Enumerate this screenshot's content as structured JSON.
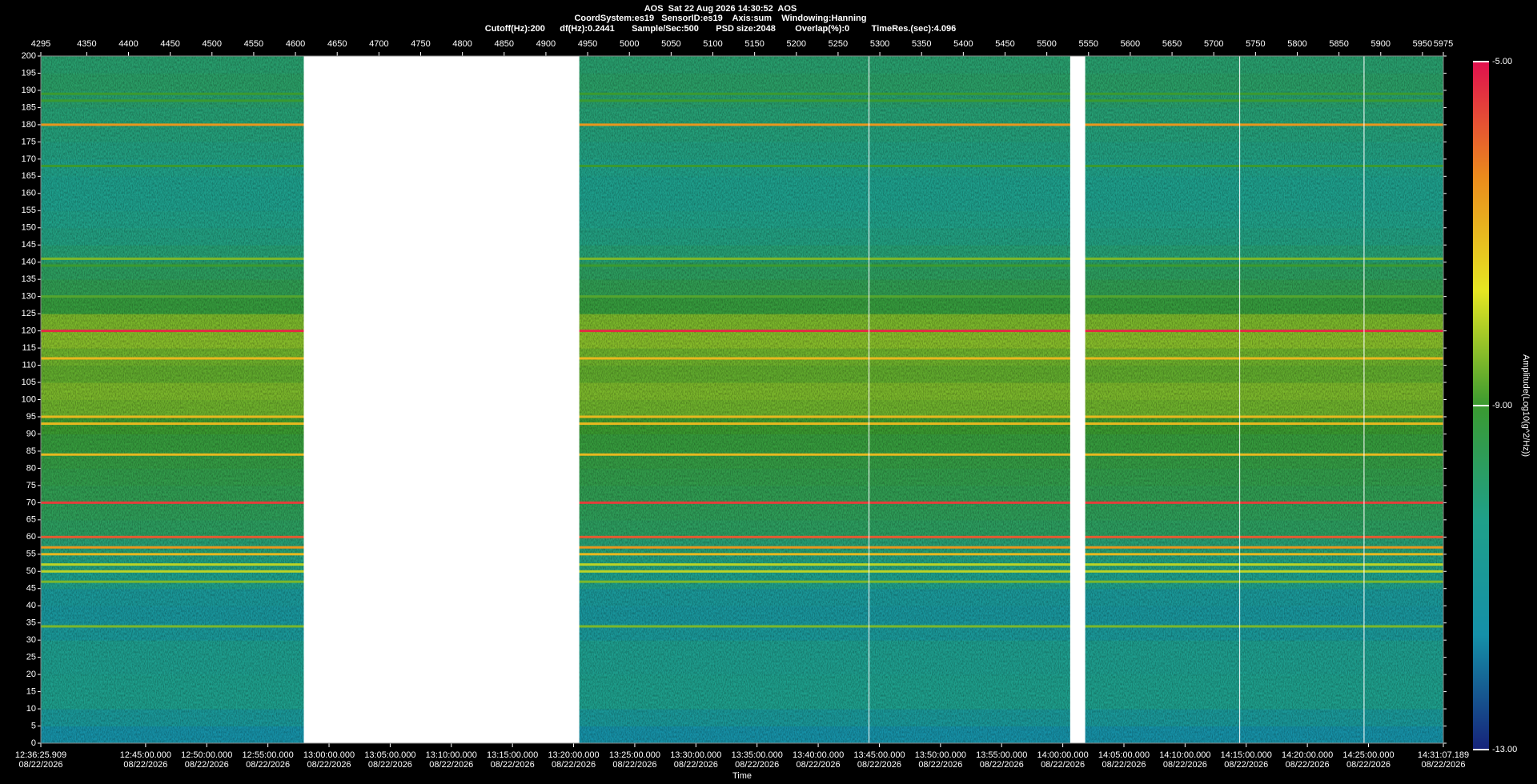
{
  "chart_data": {
    "type": "spectrogram",
    "header": [
      "AOS  Sat 22 Aug 2026 14:30:52  AOS",
      "CoordSystem:es19   SensorID:es19    Axis:sum    Windowing:Hanning",
      "Cutoff(Hz):200      df(Hz):0.2441       Sample/Sec:500       PSD size:2048        Overlap(%):0         TimeRes.(sec):4.096"
    ],
    "x_label": "Time",
    "colorbar_label": "Amplitude(Log10(g^2/Hz))",
    "xlim": [
      4295,
      5975
    ],
    "xticks": [
      4295,
      4350,
      4400,
      4450,
      4500,
      4550,
      4600,
      4650,
      4700,
      4750,
      4800,
      4850,
      4900,
      4950,
      5000,
      5050,
      5100,
      5150,
      5200,
      5250,
      5300,
      5350,
      5400,
      5450,
      5500,
      5550,
      5600,
      5650,
      5700,
      5750,
      5800,
      5850,
      5900,
      5950,
      5975
    ],
    "ylim": [
      0,
      200
    ],
    "yticks": [
      0,
      5,
      10,
      15,
      20,
      25,
      30,
      35,
      40,
      45,
      50,
      55,
      60,
      65,
      70,
      75,
      80,
      85,
      90,
      95,
      100,
      105,
      110,
      115,
      120,
      125,
      130,
      135,
      140,
      145,
      150,
      155,
      160,
      165,
      170,
      175,
      180,
      185,
      190,
      195,
      200
    ],
    "time_axis": {
      "lim": [
        45385.909,
        52267.189
      ],
      "ticks": [
        {
          "value": 45385.909,
          "label": "12:36:25.909",
          "date": "08/22/2026"
        },
        {
          "value": 45900,
          "label": "12:45:00.000",
          "date": "08/22/2026"
        },
        {
          "value": 46200,
          "label": "12:50:00.000",
          "date": "08/22/2026"
        },
        {
          "value": 46500,
          "label": "12:55:00.000",
          "date": "08/22/2026"
        },
        {
          "value": 46800,
          "label": "13:00:00.000",
          "date": "08/22/2026"
        },
        {
          "value": 47100,
          "label": "13:05:00.000",
          "date": "08/22/2026"
        },
        {
          "value": 47400,
          "label": "13:10:00.000",
          "date": "08/22/2026"
        },
        {
          "value": 47700,
          "label": "13:15:00.000",
          "date": "08/22/2026"
        },
        {
          "value": 48000,
          "label": "13:20:00.000",
          "date": "08/22/2026"
        },
        {
          "value": 48300,
          "label": "13:25:00.000",
          "date": "08/22/2026"
        },
        {
          "value": 48600,
          "label": "13:30:00.000",
          "date": "08/22/2026"
        },
        {
          "value": 48900,
          "label": "13:35:00.000",
          "date": "08/22/2026"
        },
        {
          "value": 49200,
          "label": "13:40:00.000",
          "date": "08/22/2026"
        },
        {
          "value": 49500,
          "label": "13:45:00.000",
          "date": "08/22/2026"
        },
        {
          "value": 49800,
          "label": "13:50:00.000",
          "date": "08/22/2026"
        },
        {
          "value": 50100,
          "label": "13:55:00.000",
          "date": "08/22/2026"
        },
        {
          "value": 50400,
          "label": "14:00:00.000",
          "date": "08/22/2026"
        },
        {
          "value": 50700,
          "label": "14:05:00.000",
          "date": "08/22/2026"
        },
        {
          "value": 51000,
          "label": "14:10:00.000",
          "date": "08/22/2026"
        },
        {
          "value": 51300,
          "label": "14:15:00.000",
          "date": "08/22/2026"
        },
        {
          "value": 51600,
          "label": "14:20:00.000",
          "date": "08/22/2026"
        },
        {
          "value": 51900,
          "label": "14:25:00.000",
          "date": "08/22/2026"
        },
        {
          "value": 52267.189,
          "label": "14:31:07.189",
          "date": "08/22/2026"
        }
      ]
    },
    "clim": [
      -13,
      -5
    ],
    "cticks": [
      {
        "value": -5,
        "label": "-5.00"
      },
      {
        "value": -9,
        "label": "-9.00"
      },
      {
        "value": -13,
        "label": "-13.00"
      }
    ],
    "colormap": [
      "#16237a",
      "#1590a8",
      "#1fa08a",
      "#3a9a30",
      "#e6e622",
      "#ea8a1c",
      "#e0104e"
    ],
    "band_width_hz": 5,
    "levels": [
      -11.6,
      -11.0,
      -10.4,
      -10.4,
      -10.5,
      -10.5,
      -11.0,
      -11.2,
      -11.0,
      -10.4,
      -10.2,
      -10.0,
      -9.7,
      -9.6,
      -9.5,
      -9.4,
      -9.3,
      -9.2,
      -9.0,
      -8.6,
      -8.5,
      -8.7,
      -8.6,
      -8.4,
      -8.5,
      -9.2,
      -9.5,
      -9.7,
      -10.0,
      -10.2,
      -10.3,
      -10.4,
      -10.4,
      -10.3,
      -10.2,
      -10.1,
      -10.0,
      -9.9,
      -9.8,
      -9.9
    ],
    "lines": [
      {
        "hz": 180,
        "level": -6.5
      },
      {
        "hz": 120,
        "level": -5.3
      },
      {
        "hz": 70,
        "level": -5.5
      },
      {
        "hz": 60,
        "level": -5.8
      },
      {
        "hz": 57,
        "level": -6.5
      },
      {
        "hz": 55,
        "level": -7
      },
      {
        "hz": 52,
        "level": -8
      },
      {
        "hz": 50,
        "level": -8
      },
      {
        "hz": 47,
        "level": -8.5
      },
      {
        "hz": 34,
        "level": -8.5
      },
      {
        "hz": 95,
        "level": -7
      },
      {
        "hz": 93,
        "level": -7
      },
      {
        "hz": 84,
        "level": -7
      },
      {
        "hz": 112,
        "level": -7
      },
      {
        "hz": 141,
        "level": -8.5
      },
      {
        "hz": 139,
        "level": -9
      },
      {
        "hz": 189,
        "level": -9
      },
      {
        "hz": 187,
        "level": -9
      },
      {
        "hz": 168,
        "level": -9
      },
      {
        "hz": 130,
        "level": -8.8
      }
    ],
    "gaps": [
      [
        4610,
        4940
      ],
      [
        5528,
        5546
      ]
    ],
    "marker_lines": [
      5287,
      5731,
      5880
    ]
  }
}
